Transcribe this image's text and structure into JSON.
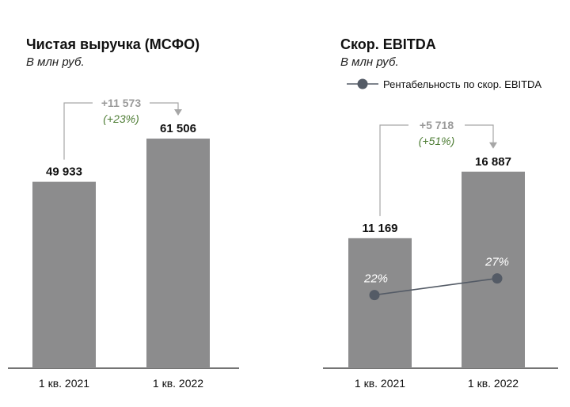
{
  "chart_data": [
    {
      "type": "bar",
      "title": "Чистая выручка (МСФО)",
      "subtitle": "В млн руб.",
      "categories": [
        "1 кв. 2021",
        "1 кв. 2022"
      ],
      "values": [
        49933,
        61506
      ],
      "value_labels": [
        "49 933",
        "61 506"
      ],
      "delta": {
        "abs": "+11 573",
        "pct": "(+23%)"
      },
      "ylim": [
        0,
        70000
      ],
      "grid": false,
      "bar_color": "#8c8c8d"
    },
    {
      "type": "bar",
      "title": "Скор. EBITDA",
      "subtitle": "В млн руб.",
      "categories": [
        "1 кв. 2021",
        "1 кв. 2022"
      ],
      "values": [
        11169,
        16887
      ],
      "value_labels": [
        "11 169",
        "16 887"
      ],
      "delta": {
        "abs": "+5 718",
        "pct": "(+51%)"
      },
      "ylim": [
        0,
        20000
      ],
      "grid": false,
      "bar_color": "#8c8c8d",
      "line_series": {
        "name": "Рентабельность по скор. EBITDA",
        "values": [
          22,
          27
        ],
        "value_labels": [
          "22%",
          "27%"
        ],
        "ylim": [
          0,
          70
        ],
        "color": "#545b66",
        "legend_position": "top"
      }
    }
  ],
  "colors": {
    "bar": "#8c8c8d",
    "delta_abs": "#9a9a9a",
    "delta_pct": "#4e7d35",
    "connector": "#a6a6a6",
    "line": "#545b66",
    "axis": "#222222"
  }
}
